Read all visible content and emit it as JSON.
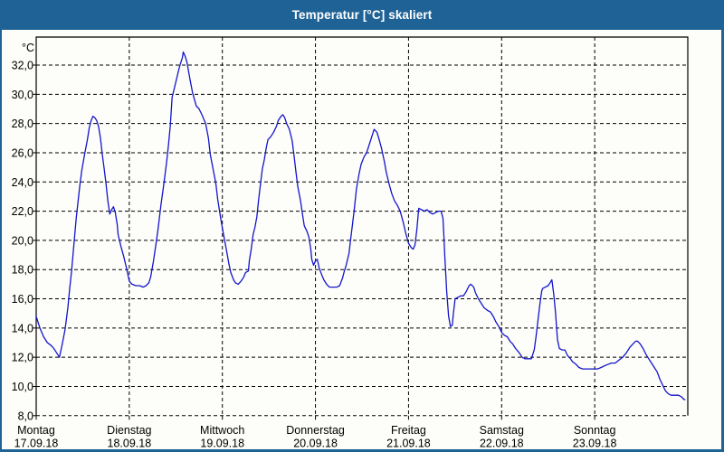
{
  "window": {
    "title": "Temperatur [°C] skaliert"
  },
  "colors": {
    "titlebar": "#1F6396",
    "window_border": "#1F6396",
    "background": "#FDFEF9",
    "line": "#1414CC",
    "grid": "#000000"
  },
  "chart_data": {
    "type": "line",
    "title": "Temperatur [°C] skaliert",
    "ylabel": "°C",
    "xlabel": "",
    "ylim": [
      8.0,
      33.9
    ],
    "x_unit": "days since Montag 17.09.18 00:00",
    "grid": "dashed-black",
    "legend": "none",
    "y_ticks": [
      {
        "value": 32,
        "label": "32,0"
      },
      {
        "value": 30,
        "label": "30,0"
      },
      {
        "value": 28,
        "label": "28,0"
      },
      {
        "value": 26,
        "label": "26,0"
      },
      {
        "value": 24,
        "label": "24,0"
      },
      {
        "value": 22,
        "label": "22,0"
      },
      {
        "value": 20,
        "label": "20,0"
      },
      {
        "value": 18,
        "label": "18,0"
      },
      {
        "value": 16,
        "label": "16,0"
      },
      {
        "value": 14,
        "label": "14,0"
      },
      {
        "value": 12,
        "label": "12,0"
      },
      {
        "value": 10,
        "label": "10,0"
      },
      {
        "value": 8,
        "label": "8,0"
      }
    ],
    "days": [
      {
        "name": "Montag",
        "date": "17.09.18"
      },
      {
        "name": "Dienstag",
        "date": "18.09.18"
      },
      {
        "name": "Mittwoch",
        "date": "19.09.18"
      },
      {
        "name": "Donnerstag",
        "date": "20.09.18"
      },
      {
        "name": "Freitag",
        "date": "21.09.18"
      },
      {
        "name": "Samstag",
        "date": "22.09.18"
      },
      {
        "name": "Sonntag",
        "date": "23.09.18"
      }
    ],
    "series": [
      {
        "name": "Temperatur [°C]",
        "color": "#1414CC",
        "points": [
          [
            0,
            14.8
          ],
          [
            0.04,
            14
          ],
          [
            0.08,
            13.4
          ],
          [
            0.12,
            13
          ],
          [
            0.16,
            12.8
          ],
          [
            0.19,
            12.6
          ],
          [
            0.22,
            12.3
          ],
          [
            0.25,
            12
          ],
          [
            0.28,
            12.9
          ],
          [
            0.31,
            13.9
          ],
          [
            0.34,
            15.4
          ],
          [
            0.36,
            16.7
          ],
          [
            0.38,
            17.9
          ],
          [
            0.41,
            20.1
          ],
          [
            0.43,
            21.5
          ],
          [
            0.45,
            22.7
          ],
          [
            0.47,
            23.8
          ],
          [
            0.49,
            24.8
          ],
          [
            0.52,
            25.9
          ],
          [
            0.55,
            26.9
          ],
          [
            0.57,
            27.7
          ],
          [
            0.59,
            28.2
          ],
          [
            0.61,
            28.5
          ],
          [
            0.63,
            28.4
          ],
          [
            0.65,
            28.2
          ],
          [
            0.67,
            27.8
          ],
          [
            0.69,
            27
          ],
          [
            0.71,
            25.9
          ],
          [
            0.73,
            24.9
          ],
          [
            0.75,
            23.9
          ],
          [
            0.77,
            22.7
          ],
          [
            0.79,
            21.8
          ],
          [
            0.81,
            22.1
          ],
          [
            0.83,
            22.3
          ],
          [
            0.85,
            21.9
          ],
          [
            0.87,
            21.1
          ],
          [
            0.88,
            20.4
          ],
          [
            0.91,
            19.6
          ],
          [
            0.94,
            18.9
          ],
          [
            0.97,
            18.1
          ],
          [
            1,
            17.2
          ],
          [
            1.03,
            17
          ],
          [
            1.07,
            16.9
          ],
          [
            1.11,
            16.9
          ],
          [
            1.15,
            16.8
          ],
          [
            1.18,
            16.9
          ],
          [
            1.21,
            17.1
          ],
          [
            1.23,
            17.5
          ],
          [
            1.26,
            18.6
          ],
          [
            1.29,
            19.9
          ],
          [
            1.31,
            20.8
          ],
          [
            1.34,
            22.4
          ],
          [
            1.37,
            23.8
          ],
          [
            1.4,
            25.3
          ],
          [
            1.42,
            26.5
          ],
          [
            1.44,
            27.8
          ],
          [
            1.46,
            29.8
          ],
          [
            1.48,
            30.3
          ],
          [
            1.51,
            31.1
          ],
          [
            1.54,
            31.9
          ],
          [
            1.57,
            32.5
          ],
          [
            1.58,
            32.9
          ],
          [
            1.6,
            32.6
          ],
          [
            1.62,
            32.2
          ],
          [
            1.65,
            31.1
          ],
          [
            1.68,
            30.1
          ],
          [
            1.72,
            29.2
          ],
          [
            1.75,
            29
          ],
          [
            1.78,
            28.6
          ],
          [
            1.82,
            28
          ],
          [
            1.85,
            27
          ],
          [
            1.87,
            25.9
          ],
          [
            1.9,
            24.9
          ],
          [
            1.93,
            23.9
          ],
          [
            1.95,
            22.8
          ],
          [
            1.97,
            22
          ],
          [
            1.99,
            21.2
          ],
          [
            2.01,
            20.5
          ],
          [
            2.03,
            19.8
          ],
          [
            2.05,
            19.1
          ],
          [
            2.07,
            18.4
          ],
          [
            2.09,
            17.8
          ],
          [
            2.12,
            17.3
          ],
          [
            2.14,
            17.1
          ],
          [
            2.17,
            17
          ],
          [
            2.2,
            17.2
          ],
          [
            2.23,
            17.5
          ],
          [
            2.25,
            17.8
          ],
          [
            2.28,
            17.9
          ],
          [
            2.29,
            18.6
          ],
          [
            2.31,
            19.4
          ],
          [
            2.33,
            20.4
          ],
          [
            2.35,
            20.9
          ],
          [
            2.37,
            21.6
          ],
          [
            2.39,
            22.8
          ],
          [
            2.41,
            23.9
          ],
          [
            2.43,
            24.9
          ],
          [
            2.45,
            25.5
          ],
          [
            2.47,
            26.3
          ],
          [
            2.49,
            26.9
          ],
          [
            2.52,
            27.1
          ],
          [
            2.55,
            27.4
          ],
          [
            2.58,
            27.8
          ],
          [
            2.6,
            28.2
          ],
          [
            2.63,
            28.5
          ],
          [
            2.65,
            28.6
          ],
          [
            2.67,
            28.4
          ],
          [
            2.69,
            28
          ],
          [
            2.72,
            27.6
          ],
          [
            2.75,
            26.8
          ],
          [
            2.77,
            25.8
          ],
          [
            2.79,
            24.7
          ],
          [
            2.81,
            23.7
          ],
          [
            2.84,
            22.7
          ],
          [
            2.86,
            21.8
          ],
          [
            2.88,
            21
          ],
          [
            2.91,
            20.6
          ],
          [
            2.93,
            20.2
          ],
          [
            2.95,
            19.4
          ],
          [
            2.96,
            18.7
          ],
          [
            2.98,
            18.3
          ],
          [
            3,
            18.6
          ],
          [
            3.02,
            18.7
          ],
          [
            3.04,
            18.1
          ],
          [
            3.07,
            17.6
          ],
          [
            3.09,
            17.3
          ],
          [
            3.12,
            17
          ],
          [
            3.15,
            16.8
          ],
          [
            3.19,
            16.8
          ],
          [
            3.23,
            16.8
          ],
          [
            3.26,
            16.9
          ],
          [
            3.29,
            17.4
          ],
          [
            3.31,
            17.9
          ],
          [
            3.33,
            18.3
          ],
          [
            3.36,
            19.1
          ],
          [
            3.38,
            20.2
          ],
          [
            3.4,
            21.2
          ],
          [
            3.42,
            22.3
          ],
          [
            3.44,
            23.5
          ],
          [
            3.47,
            24.6
          ],
          [
            3.49,
            25.2
          ],
          [
            3.52,
            25.7
          ],
          [
            3.55,
            26
          ],
          [
            3.57,
            26.4
          ],
          [
            3.6,
            27
          ],
          [
            3.63,
            27.6
          ],
          [
            3.66,
            27.4
          ],
          [
            3.68,
            27
          ],
          [
            3.71,
            26.3
          ],
          [
            3.74,
            25.4
          ],
          [
            3.76,
            24.7
          ],
          [
            3.79,
            23.9
          ],
          [
            3.82,
            23.2
          ],
          [
            3.85,
            22.7
          ],
          [
            3.88,
            22.4
          ],
          [
            3.91,
            22
          ],
          [
            3.94,
            21.3
          ],
          [
            3.97,
            20.5
          ],
          [
            4,
            19.8
          ],
          [
            4.03,
            19.5
          ],
          [
            4.05,
            19.4
          ],
          [
            4.07,
            19.7
          ],
          [
            4.09,
            20.8
          ],
          [
            4.11,
            22.2
          ],
          [
            4.14,
            22.1
          ],
          [
            4.17,
            22
          ],
          [
            4.2,
            22.1
          ],
          [
            4.23,
            21.9
          ],
          [
            4.26,
            21.8
          ],
          [
            4.29,
            21.9
          ],
          [
            4.32,
            22
          ],
          [
            4.35,
            22
          ],
          [
            4.37,
            21.5
          ],
          [
            4.38,
            20.3
          ],
          [
            4.39,
            18.9
          ],
          [
            4.41,
            16.5
          ],
          [
            4.43,
            14.8
          ],
          [
            4.45,
            14.1
          ],
          [
            4.47,
            14.2
          ],
          [
            4.48,
            14.9
          ],
          [
            4.5,
            16
          ],
          [
            4.53,
            16.1
          ],
          [
            4.56,
            16.2
          ],
          [
            4.59,
            16.2
          ],
          [
            4.62,
            16.5
          ],
          [
            4.65,
            16.9
          ],
          [
            4.67,
            17
          ],
          [
            4.7,
            16.8
          ],
          [
            4.72,
            16.4
          ],
          [
            4.75,
            16
          ],
          [
            4.78,
            15.7
          ],
          [
            4.81,
            15.4
          ],
          [
            4.85,
            15.2
          ],
          [
            4.88,
            15.1
          ],
          [
            4.91,
            14.8
          ],
          [
            4.94,
            14.4
          ],
          [
            4.97,
            14.1
          ],
          [
            5,
            13.7
          ],
          [
            5.03,
            13.5
          ],
          [
            5.06,
            13.4
          ],
          [
            5.09,
            13.1
          ],
          [
            5.12,
            12.9
          ],
          [
            5.15,
            12.6
          ],
          [
            5.19,
            12.3
          ],
          [
            5.22,
            12
          ],
          [
            5.25,
            11.9
          ],
          [
            5.29,
            11.9
          ],
          [
            5.32,
            11.9
          ],
          [
            5.35,
            12.5
          ],
          [
            5.37,
            13.4
          ],
          [
            5.39,
            14.5
          ],
          [
            5.41,
            15.6
          ],
          [
            5.43,
            16.5
          ],
          [
            5.44,
            16.7
          ],
          [
            5.47,
            16.8
          ],
          [
            5.5,
            16.9
          ],
          [
            5.52,
            17.1
          ],
          [
            5.54,
            17.3
          ],
          [
            5.56,
            16.3
          ],
          [
            5.58,
            15
          ],
          [
            5.6,
            13.2
          ],
          [
            5.62,
            12.6
          ],
          [
            5.65,
            12.5
          ],
          [
            5.68,
            12.5
          ],
          [
            5.71,
            12.1
          ],
          [
            5.74,
            11.9
          ],
          [
            5.76,
            11.7
          ],
          [
            5.8,
            11.5
          ],
          [
            5.83,
            11.3
          ],
          [
            5.87,
            11.2
          ],
          [
            5.91,
            11.2
          ],
          [
            5.95,
            11.2
          ],
          [
            5.99,
            11.2
          ],
          [
            6.03,
            11.2
          ],
          [
            6.07,
            11.3
          ],
          [
            6.1,
            11.4
          ],
          [
            6.14,
            11.5
          ],
          [
            6.18,
            11.6
          ],
          [
            6.22,
            11.6
          ],
          [
            6.26,
            11.8
          ],
          [
            6.3,
            12
          ],
          [
            6.34,
            12.3
          ],
          [
            6.38,
            12.7
          ],
          [
            6.41,
            12.9
          ],
          [
            6.44,
            13.1
          ],
          [
            6.46,
            13.1
          ],
          [
            6.49,
            12.9
          ],
          [
            6.52,
            12.6
          ],
          [
            6.55,
            12.2
          ],
          [
            6.58,
            11.9
          ],
          [
            6.61,
            11.6
          ],
          [
            6.64,
            11.3
          ],
          [
            6.67,
            11
          ],
          [
            6.7,
            10.5
          ],
          [
            6.73,
            10.1
          ],
          [
            6.76,
            9.7
          ],
          [
            6.79,
            9.5
          ],
          [
            6.82,
            9.4
          ],
          [
            6.86,
            9.4
          ],
          [
            6.9,
            9.4
          ],
          [
            6.93,
            9.3
          ],
          [
            6.96,
            9.1
          ],
          [
            6.97,
            9.1
          ]
        ]
      }
    ]
  }
}
